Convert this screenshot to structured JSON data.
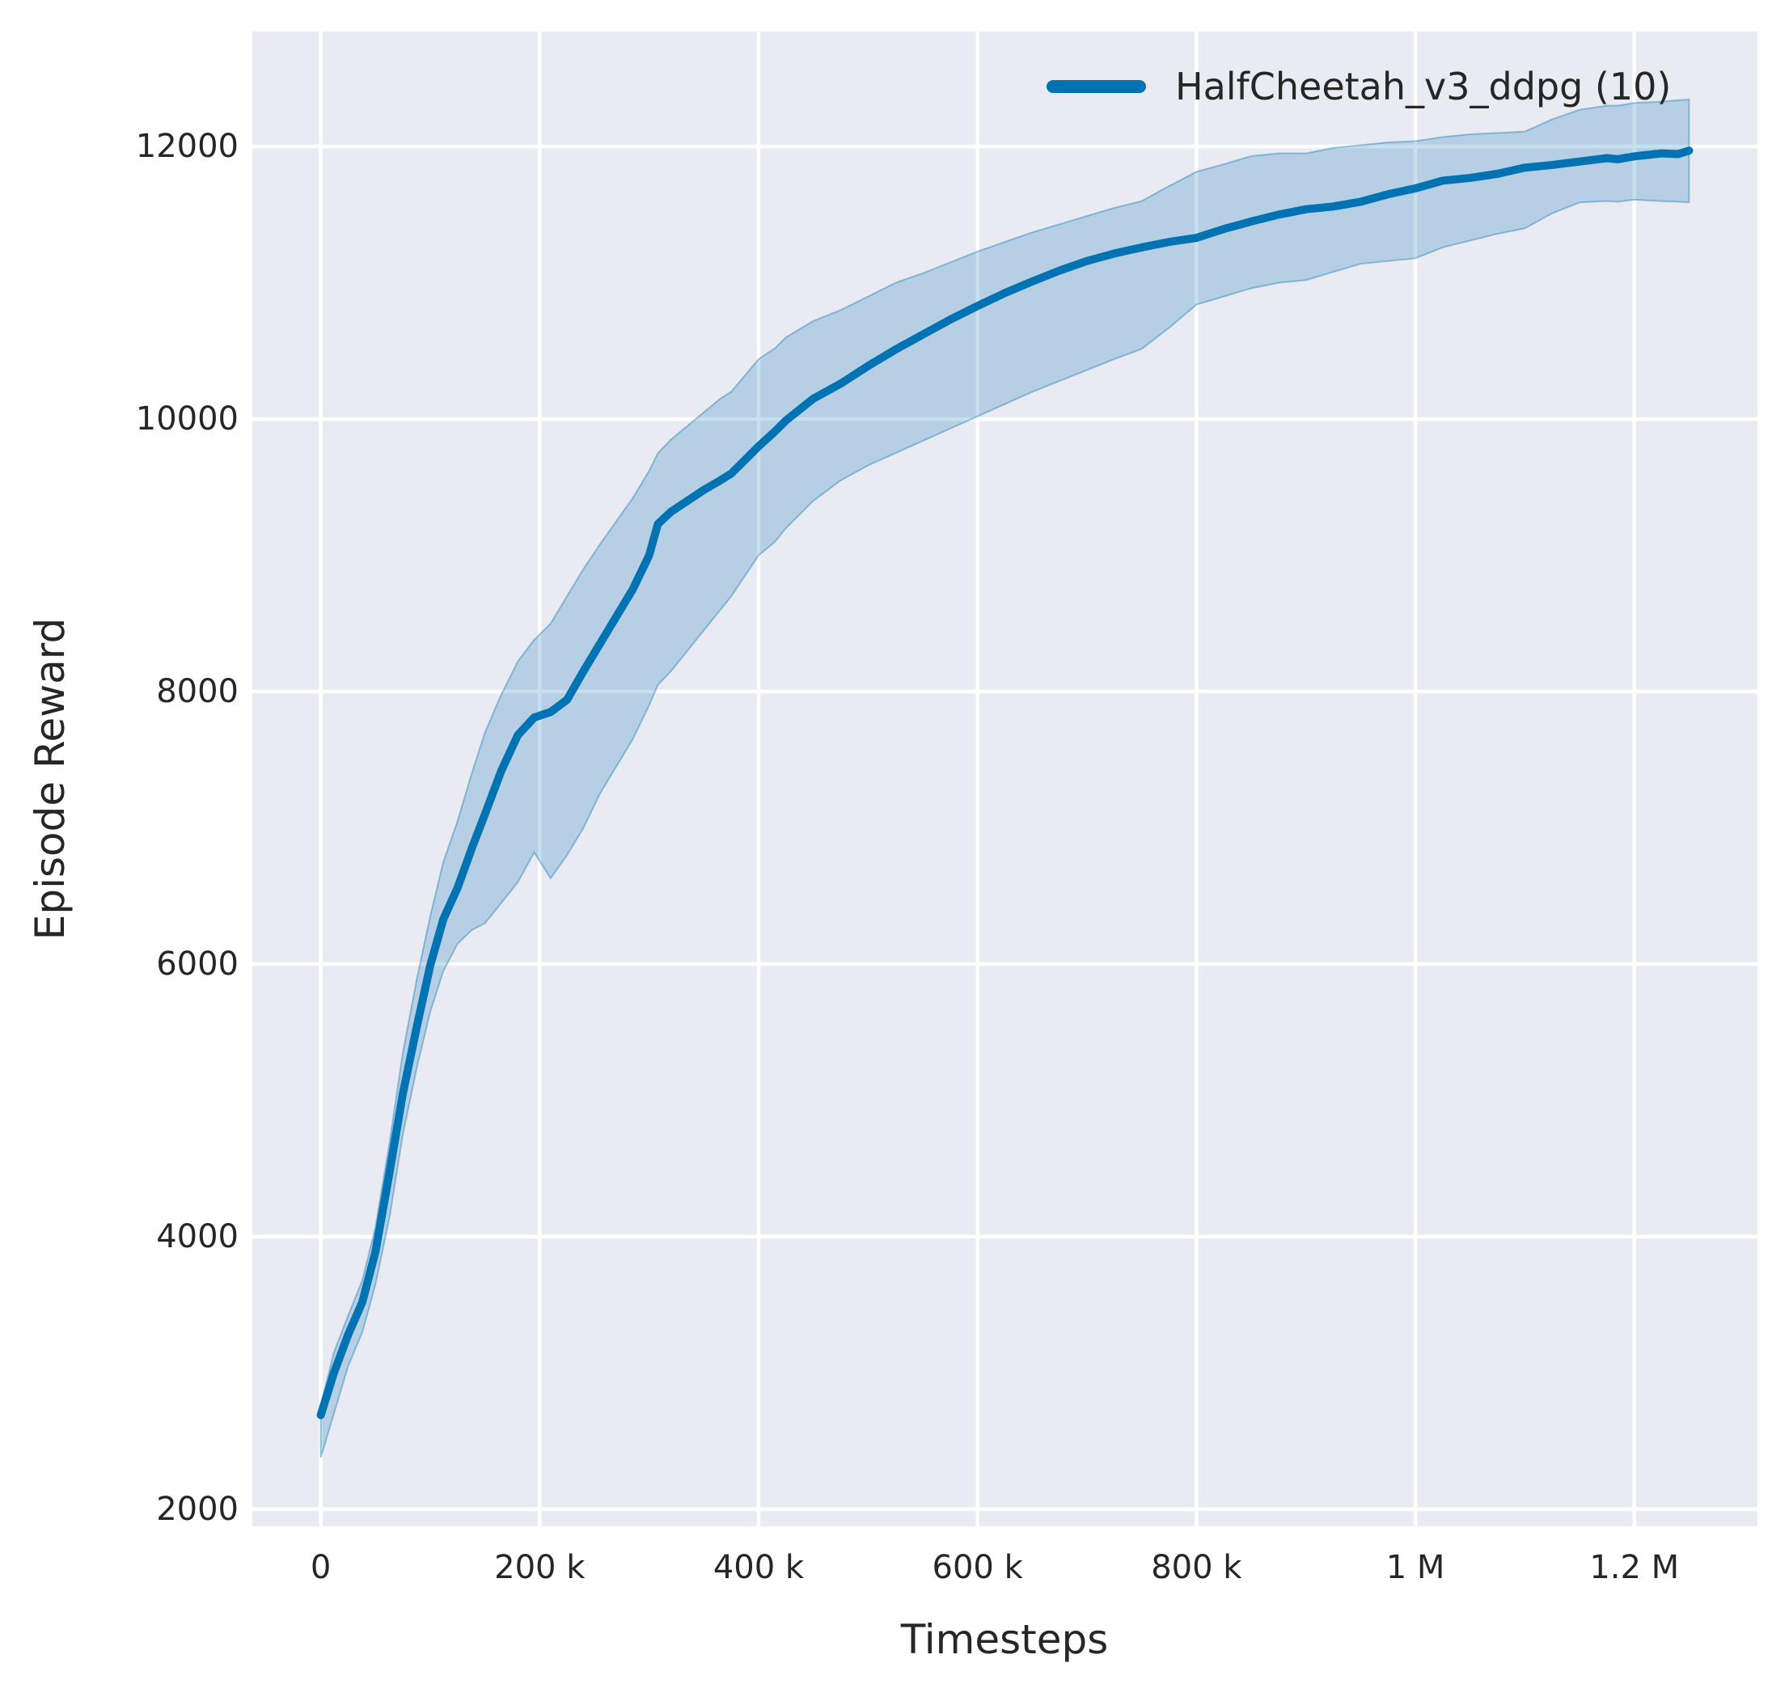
{
  "figure": {
    "kind": "seaborn-line-plot"
  },
  "chart_data": {
    "type": "line",
    "title": "",
    "xlabel": "Timesteps",
    "ylabel": "Episode Reward",
    "grid": true,
    "legend_position": "upper right",
    "plot_background": "#eaeaf2",
    "grid_color": "#ffffff",
    "text_color": "#262626",
    "xlim": [
      -62500,
      1312500
    ],
    "ylim": [
      1874,
      12844
    ],
    "x_ticks": [
      {
        "value": 0,
        "label": "0"
      },
      {
        "value": 200000,
        "label": "200 k"
      },
      {
        "value": 400000,
        "label": "400 k"
      },
      {
        "value": 600000,
        "label": "600 k"
      },
      {
        "value": 800000,
        "label": "800 k"
      },
      {
        "value": 1000000,
        "label": "1 M"
      },
      {
        "value": 1200000,
        "label": "1.2 M"
      }
    ],
    "y_ticks": [
      {
        "value": 2000,
        "label": "2000"
      },
      {
        "value": 4000,
        "label": "4000"
      },
      {
        "value": 6000,
        "label": "6000"
      },
      {
        "value": 8000,
        "label": "8000"
      },
      {
        "value": 10000,
        "label": "10000"
      },
      {
        "value": 12000,
        "label": "12000"
      }
    ],
    "series": [
      {
        "name": "HalfCheetah_v3_ddpg (10)",
        "color": "#0173b2",
        "band_fill": "rgba(1,115,178,0.22)",
        "band_edge": "rgba(1,115,178,0.38)",
        "x": [
          0,
          12000,
          25000,
          38000,
          50000,
          63000,
          75000,
          88000,
          100000,
          112000,
          125000,
          138000,
          150000,
          165000,
          180000,
          195000,
          210000,
          225000,
          240000,
          255000,
          270000,
          285000,
          300000,
          308000,
          320000,
          335000,
          350000,
          365000,
          375000,
          400000,
          415000,
          425000,
          450000,
          475000,
          500000,
          525000,
          550000,
          575000,
          600000,
          625000,
          650000,
          675000,
          700000,
          725000,
          750000,
          775000,
          800000,
          825000,
          850000,
          875000,
          900000,
          925000,
          950000,
          975000,
          1000000,
          1025000,
          1050000,
          1075000,
          1100000,
          1125000,
          1150000,
          1175000,
          1185000,
          1200000,
          1225000,
          1240000,
          1250000
        ],
        "mean": [
          2690,
          3000,
          3280,
          3520,
          3890,
          4480,
          5050,
          5550,
          5990,
          6330,
          6560,
          6850,
          7100,
          7420,
          7680,
          7810,
          7850,
          7940,
          8150,
          8350,
          8550,
          8750,
          9000,
          9230,
          9320,
          9400,
          9480,
          9550,
          9600,
          9800,
          9910,
          9990,
          10150,
          10260,
          10390,
          10510,
          10620,
          10730,
          10830,
          10925,
          11010,
          11090,
          11160,
          11215,
          11260,
          11300,
          11330,
          11395,
          11450,
          11500,
          11540,
          11560,
          11595,
          11650,
          11693,
          11750,
          11770,
          11800,
          11845,
          11865,
          11890,
          11915,
          11907,
          11928,
          11950,
          11945,
          11970
        ],
        "band_low": [
          2380,
          2700,
          3050,
          3300,
          3650,
          4150,
          4750,
          5250,
          5650,
          5950,
          6150,
          6250,
          6300,
          6450,
          6600,
          6820,
          6630,
          6800,
          7000,
          7250,
          7450,
          7650,
          7900,
          8050,
          8150,
          8300,
          8450,
          8600,
          8700,
          9000,
          9100,
          9200,
          9400,
          9550,
          9660,
          9750,
          9840,
          9930,
          10020,
          10110,
          10200,
          10280,
          10360,
          10440,
          10515,
          10670,
          10840,
          10900,
          10960,
          11000,
          11020,
          11080,
          11140,
          11160,
          11180,
          11260,
          11310,
          11360,
          11400,
          11510,
          11590,
          11600,
          11595,
          11610,
          11600,
          11595,
          11590
        ],
        "band_high": [
          2760,
          3150,
          3420,
          3680,
          4070,
          4700,
          5350,
          5900,
          6350,
          6750,
          7050,
          7400,
          7700,
          7980,
          8220,
          8380,
          8500,
          8700,
          8900,
          9080,
          9250,
          9420,
          9620,
          9750,
          9850,
          9950,
          10050,
          10150,
          10200,
          10440,
          10520,
          10600,
          10720,
          10800,
          10900,
          11000,
          11070,
          11150,
          11230,
          11300,
          11370,
          11430,
          11490,
          11550,
          11600,
          11710,
          11815,
          11870,
          11930,
          11950,
          11950,
          11990,
          12010,
          12030,
          12040,
          12070,
          12090,
          12100,
          12110,
          12200,
          12270,
          12300,
          12300,
          12320,
          12330,
          12340,
          12345
        ]
      }
    ]
  }
}
